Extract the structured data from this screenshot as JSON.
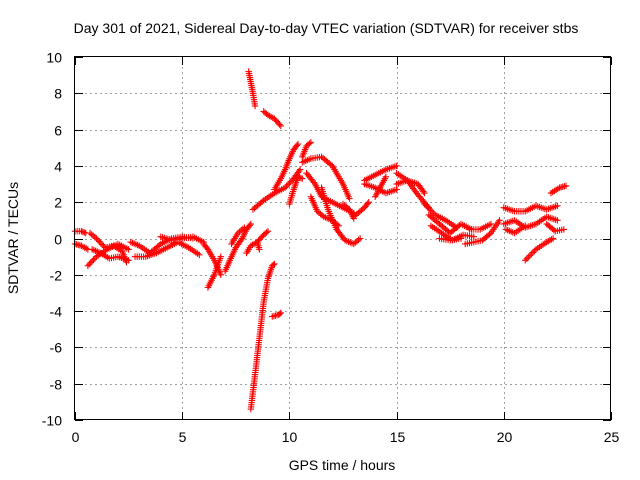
{
  "chart_data": {
    "type": "scatter",
    "title": "Day 301 of 2021, Sidereal Day-to-day VTEC variation (SDTVAR) for receiver stbs",
    "xlabel": "GPS time / hours",
    "ylabel": "SDTVAR / TECUs",
    "xlim": [
      0,
      25
    ],
    "ylim": [
      -10,
      10
    ],
    "xticks": [
      0,
      5,
      10,
      15,
      20,
      25
    ],
    "yticks": [
      -10,
      -8,
      -6,
      -4,
      -2,
      0,
      2,
      4,
      6,
      8,
      10
    ],
    "xtick_labels": [
      "0",
      "5",
      "10",
      "15",
      "20",
      "25"
    ],
    "ytick_labels": [
      "-10",
      "-8",
      "-6",
      "-4",
      "-2",
      "0",
      "2",
      "4",
      "6",
      "8",
      "10"
    ],
    "grid": true,
    "marker": "+",
    "marker_color": "#ff0000",
    "series": [
      {
        "name": "stbs",
        "segments": [
          [
            [
              0.0,
              0.4
            ],
            [
              0.3,
              0.4
            ],
            [
              0.5,
              0.3
            ]
          ],
          [
            [
              0.0,
              -0.3
            ],
            [
              0.3,
              -0.4
            ],
            [
              0.6,
              -0.6
            ]
          ],
          [
            [
              0.6,
              -1.5
            ],
            [
              1.0,
              -1.0
            ],
            [
              1.5,
              -0.6
            ],
            [
              2.0,
              -0.3
            ],
            [
              2.5,
              -0.6
            ]
          ],
          [
            [
              0.7,
              0.3
            ],
            [
              1.0,
              0.0
            ],
            [
              1.4,
              -0.5
            ],
            [
              1.8,
              -0.4
            ],
            [
              2.2,
              -0.7
            ],
            [
              2.4,
              -1.3
            ]
          ],
          [
            [
              0.8,
              -0.6
            ],
            [
              1.2,
              -0.8
            ],
            [
              1.6,
              -1.1
            ],
            [
              2.0,
              -1.0
            ],
            [
              2.5,
              -1.2
            ]
          ],
          [
            [
              2.6,
              -0.2
            ],
            [
              3.0,
              -0.4
            ],
            [
              3.5,
              -0.8
            ],
            [
              4.0,
              -0.3
            ],
            [
              4.5,
              0.0
            ],
            [
              5.0,
              0.1
            ],
            [
              5.5,
              0.0
            ]
          ],
          [
            [
              2.8,
              -1.0
            ],
            [
              3.3,
              -1.0
            ],
            [
              3.8,
              -0.8
            ],
            [
              4.3,
              -0.5
            ],
            [
              4.8,
              -0.2
            ],
            [
              5.3,
              -0.5
            ],
            [
              5.8,
              -0.9
            ]
          ],
          [
            [
              4.0,
              0.1
            ],
            [
              4.5,
              -0.1
            ],
            [
              5.0,
              0.0
            ],
            [
              5.5,
              0.1
            ],
            [
              6.0,
              -0.2
            ]
          ],
          [
            [
              6.0,
              -0.3
            ],
            [
              6.2,
              -0.6
            ],
            [
              6.5,
              -1.2
            ],
            [
              6.8,
              -2.0
            ]
          ],
          [
            [
              6.2,
              -2.7
            ],
            [
              6.5,
              -2.0
            ],
            [
              6.8,
              -1.0
            ]
          ],
          [
            [
              7.0,
              -1.8
            ],
            [
              7.3,
              -1.0
            ],
            [
              7.5,
              -0.5
            ],
            [
              7.8,
              0.0
            ],
            [
              8.0,
              0.5
            ],
            [
              8.2,
              0.8
            ]
          ],
          [
            [
              7.3,
              -0.3
            ],
            [
              7.6,
              0.3
            ],
            [
              7.9,
              0.6
            ]
          ],
          [
            [
              8.0,
              -0.8
            ],
            [
              8.2,
              -0.4
            ],
            [
              8.5,
              -0.2
            ],
            [
              8.6,
              -0.6
            ]
          ],
          [
            [
              8.1,
              9.2
            ],
            [
              8.3,
              8.0
            ],
            [
              8.4,
              7.3
            ]
          ],
          [
            [
              8.8,
              7.0
            ],
            [
              9.0,
              6.8
            ],
            [
              9.3,
              6.6
            ],
            [
              9.6,
              6.2
            ]
          ],
          [
            [
              8.2,
              -9.4
            ],
            [
              8.4,
              -7.5
            ],
            [
              8.6,
              -5.5
            ],
            [
              8.8,
              -3.5
            ],
            [
              9.0,
              -2.2
            ],
            [
              9.2,
              -1.5
            ],
            [
              9.3,
              -1.4
            ]
          ],
          [
            [
              8.5,
              -0.2
            ],
            [
              8.8,
              0.2
            ],
            [
              9.0,
              0.4
            ]
          ],
          [
            [
              9.2,
              -4.3
            ],
            [
              9.5,
              -4.2
            ],
            [
              9.6,
              -4.1
            ]
          ],
          [
            [
              8.3,
              1.6
            ],
            [
              8.8,
              2.1
            ],
            [
              9.3,
              2.5
            ],
            [
              9.8,
              2.8
            ],
            [
              10.2,
              3.3
            ],
            [
              10.5,
              3.8
            ]
          ],
          [
            [
              9.3,
              2.7
            ],
            [
              9.6,
              3.3
            ],
            [
              9.8,
              3.8
            ],
            [
              10.0,
              4.4
            ],
            [
              10.2,
              4.9
            ],
            [
              10.4,
              5.2
            ]
          ],
          [
            [
              10.0,
              1.9
            ],
            [
              10.2,
              2.7
            ],
            [
              10.4,
              3.4
            ],
            [
              10.6,
              3.3
            ]
          ],
          [
            [
              10.6,
              4.5
            ],
            [
              10.8,
              5.1
            ],
            [
              11.0,
              5.3
            ]
          ],
          [
            [
              10.6,
              4.2
            ],
            [
              11.0,
              4.4
            ],
            [
              11.5,
              4.5
            ],
            [
              12.0,
              4.0
            ],
            [
              12.5,
              3.0
            ],
            [
              12.8,
              2.2
            ]
          ],
          [
            [
              10.8,
              3.6
            ],
            [
              11.2,
              3.0
            ],
            [
              11.5,
              2.3
            ],
            [
              12.0,
              2.0
            ],
            [
              12.5,
              1.7
            ],
            [
              13.0,
              1.4
            ]
          ],
          [
            [
              11.0,
              2.3
            ],
            [
              11.3,
              1.5
            ],
            [
              11.6,
              1.2
            ],
            [
              12.0,
              1.0
            ],
            [
              12.3,
              0.7
            ]
          ],
          [
            [
              11.5,
              2.8
            ],
            [
              11.8,
              1.6
            ],
            [
              12.2,
              0.5
            ],
            [
              12.6,
              -0.1
            ],
            [
              13.0,
              -0.3
            ],
            [
              13.3,
              0.0
            ]
          ],
          [
            [
              12.5,
              1.9
            ],
            [
              12.8,
              1.6
            ],
            [
              13.0,
              1.1
            ]
          ],
          [
            [
              13.0,
              1.2
            ],
            [
              13.5,
              1.7
            ],
            [
              13.7,
              2.0
            ]
          ],
          [
            [
              13.5,
              3.2
            ],
            [
              14.0,
              3.5
            ],
            [
              14.5,
              3.8
            ],
            [
              15.0,
              4.0
            ]
          ],
          [
            [
              13.5,
              3.0
            ],
            [
              14.0,
              2.8
            ],
            [
              14.5,
              2.5
            ],
            [
              15.0,
              2.7
            ]
          ],
          [
            [
              14.0,
              2.3
            ],
            [
              14.5,
              3.4
            ]
          ],
          [
            [
              15.0,
              3.6
            ],
            [
              15.5,
              3.2
            ],
            [
              16.0,
              3.0
            ],
            [
              16.3,
              2.5
            ]
          ],
          [
            [
              15.0,
              3.0
            ],
            [
              15.5,
              3.2
            ],
            [
              16.0,
              2.4
            ],
            [
              16.5,
              1.7
            ]
          ],
          [
            [
              16.3,
              1.9
            ],
            [
              16.8,
              1.3
            ],
            [
              17.3,
              1.0
            ],
            [
              17.8,
              0.6
            ]
          ],
          [
            [
              16.5,
              1.3
            ],
            [
              17.0,
              0.8
            ],
            [
              17.5,
              0.3
            ],
            [
              18.0,
              0.8
            ],
            [
              18.5,
              0.5
            ]
          ],
          [
            [
              16.6,
              0.7
            ],
            [
              17.1,
              0.3
            ],
            [
              17.6,
              -0.1
            ],
            [
              18.1,
              0.2
            ],
            [
              18.6,
              0.1
            ]
          ],
          [
            [
              17.0,
              0.0
            ],
            [
              17.5,
              -0.1
            ],
            [
              18.0,
              0.0
            ]
          ],
          [
            [
              18.2,
              -0.3
            ],
            [
              18.6,
              -0.2
            ],
            [
              19.0,
              -0.1
            ],
            [
              19.4,
              0.3
            ],
            [
              19.8,
              1.0
            ]
          ],
          [
            [
              18.4,
              0.5
            ],
            [
              18.9,
              0.5
            ],
            [
              19.4,
              0.8
            ]
          ],
          [
            [
              20.0,
              1.7
            ],
            [
              20.5,
              1.5
            ],
            [
              21.0,
              1.5
            ],
            [
              21.5,
              1.8
            ],
            [
              22.0,
              1.6
            ],
            [
              22.5,
              1.8
            ]
          ],
          [
            [
              20.0,
              0.8
            ],
            [
              20.5,
              1.0
            ],
            [
              21.0,
              0.6
            ],
            [
              21.5,
              0.8
            ],
            [
              22.0,
              1.2
            ],
            [
              22.5,
              1.0
            ]
          ],
          [
            [
              20.1,
              0.5
            ],
            [
              20.5,
              0.3
            ],
            [
              21.0,
              0.7
            ]
          ],
          [
            [
              21.0,
              -1.2
            ],
            [
              21.5,
              -0.6
            ],
            [
              22.0,
              -0.2
            ],
            [
              22.3,
              0.0
            ]
          ],
          [
            [
              22.2,
              2.5
            ],
            [
              22.6,
              2.8
            ],
            [
              22.9,
              2.9
            ]
          ],
          [
            [
              22.0,
              0.8
            ],
            [
              22.4,
              0.4
            ],
            [
              22.8,
              0.5
            ]
          ]
        ]
      }
    ]
  }
}
